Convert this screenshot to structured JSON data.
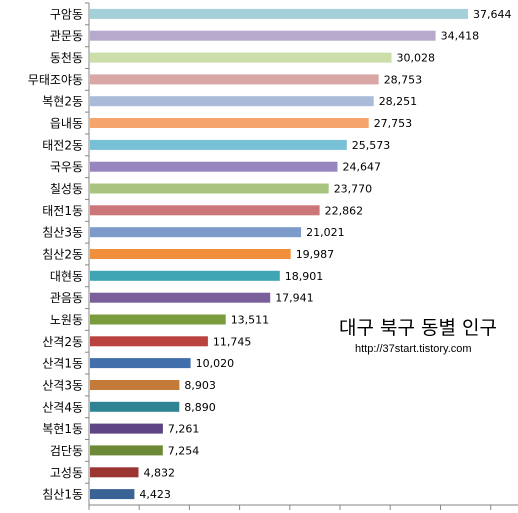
{
  "overlay": {
    "title": "대구 북구 동별 인구",
    "url": "http://37start.tistory.com"
  },
  "chart_data": {
    "type": "bar",
    "orientation": "horizontal",
    "categories": [
      "구암동",
      "관문동",
      "동천동",
      "무태조야동",
      "복현2동",
      "읍내동",
      "태전2동",
      "국우동",
      "칠성동",
      "태전1동",
      "침산3동",
      "침산2동",
      "대현동",
      "관음동",
      "노원동",
      "산격2동",
      "산격1동",
      "산격3동",
      "산격4동",
      "복현1동",
      "검단동",
      "고성동",
      "침산1동"
    ],
    "values": [
      37644,
      34418,
      30028,
      28753,
      28251,
      27753,
      25573,
      24647,
      23770,
      22862,
      21021,
      19987,
      18901,
      17941,
      13511,
      11745,
      10020,
      8903,
      8890,
      7261,
      7254,
      4832,
      4423
    ],
    "value_labels": [
      "37,644",
      "34,418",
      "30,028",
      "28,753",
      "28,251",
      "27,753",
      "25,573",
      "24,647",
      "23,770",
      "22,862",
      "21,021",
      "19,987",
      "18,901",
      "17,941",
      "13,511",
      "11,745",
      "10,020",
      "8,903",
      "8,890",
      "7,261",
      "7,254",
      "4,832",
      "4,423"
    ],
    "colors": [
      "#a5cfd9",
      "#b7a9cb",
      "#cbdda9",
      "#d9a7a5",
      "#a9bbd8",
      "#f5a46c",
      "#77c0d6",
      "#9785bf",
      "#a9c47f",
      "#cc7679",
      "#7c9bcb",
      "#f08f3c",
      "#3fa4b3",
      "#7b5f9b",
      "#7a9c3c",
      "#b9433f",
      "#416fab",
      "#c47a38",
      "#2e8493",
      "#5d4482",
      "#6c8a36",
      "#9a3532",
      "#3a6395"
    ],
    "xlim": [
      0,
      40000
    ],
    "x_tick_step": 5000,
    "title": "",
    "xlabel": "",
    "ylabel": "",
    "grid": false,
    "legend": "none"
  }
}
